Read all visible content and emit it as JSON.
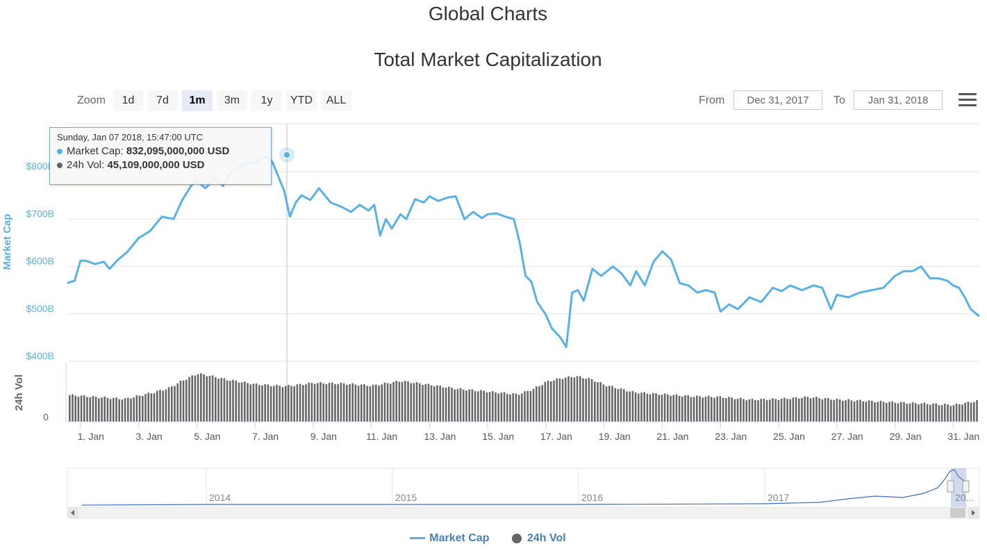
{
  "header": {
    "title": "Global Charts",
    "chart_title": "Total Market Capitalization"
  },
  "zoom": {
    "label": "Zoom",
    "buttons": [
      "1d",
      "7d",
      "1m",
      "3m",
      "1y",
      "YTD",
      "ALL"
    ],
    "active": "1m"
  },
  "range": {
    "from_label": "From",
    "from_value": "Dec 31, 2017",
    "to_label": "To",
    "to_value": "Jan 31, 2018"
  },
  "tooltip": {
    "date": "Sunday, Jan 07 2018, 15:47:00 UTC",
    "market_cap_label": "Market Cap:",
    "market_cap_value": "832,095,000,000 USD",
    "vol_label": "24h Vol:",
    "vol_value": "45,109,000,000 USD"
  },
  "legend": {
    "market_cap": "Market Cap",
    "vol": "24h Vol"
  },
  "colors": {
    "market_cap": "#58b0e3",
    "vol": "#666666",
    "navigator": "#3b6cc0"
  },
  "chart_data": {
    "type": "line",
    "title": "Total Market Capitalization",
    "ylabel": "Market Cap",
    "ylabel2": "24h Vol",
    "ylim": [
      400,
      860
    ],
    "y_unit": "B USD",
    "yticks": [
      "$400B",
      "$500B",
      "$600B",
      "$700B",
      "$800B"
    ],
    "ytick_values": [
      400,
      500,
      600,
      700,
      800
    ],
    "vol_ticks": [
      "0"
    ],
    "xticks": [
      "1. Jan",
      "3. Jan",
      "5. Jan",
      "7. Jan",
      "9. Jan",
      "11. Jan",
      "13. Jan",
      "15. Jan",
      "17. Jan",
      "19. Jan",
      "21. Jan",
      "23. Jan",
      "25. Jan",
      "27. Jan",
      "29. Jan",
      "31. Jan"
    ],
    "xtick_days": [
      1,
      3,
      5,
      7,
      9,
      11,
      13,
      15,
      17,
      19,
      21,
      23,
      25,
      27,
      29,
      31
    ],
    "xlim": [
      0.55,
      31.9
    ],
    "navigator_labels": [
      "2014",
      "2015",
      "2016",
      "2017",
      "20..."
    ],
    "series": [
      {
        "name": "Market Cap",
        "x": [
          0.55,
          0.8,
          1.0,
          1.2,
          1.5,
          1.8,
          2.0,
          2.3,
          2.6,
          3.0,
          3.4,
          3.8,
          4.2,
          4.5,
          4.8,
          5.0,
          5.3,
          5.6,
          5.9,
          6.2,
          6.6,
          7.0,
          7.4,
          7.6,
          7.8,
          8.0,
          8.2,
          8.4,
          8.6,
          8.9,
          9.2,
          9.6,
          10.0,
          10.3,
          10.6,
          10.9,
          11.1,
          11.3,
          11.5,
          11.7,
          12.0,
          12.2,
          12.5,
          12.8,
          13.0,
          13.3,
          13.6,
          13.9,
          14.2,
          14.5,
          14.8,
          15.0,
          15.3,
          15.6,
          15.9,
          16.1,
          16.3,
          16.5,
          16.7,
          17.0,
          17.2,
          17.5,
          17.7,
          17.9,
          18.1,
          18.3,
          18.6,
          18.9,
          19.3,
          19.6,
          19.9,
          20.1,
          20.4,
          20.7,
          21.0,
          21.3,
          21.6,
          21.9,
          22.2,
          22.5,
          22.8,
          23.0,
          23.3,
          23.6,
          24.0,
          24.4,
          24.8,
          25.1,
          25.4,
          25.8,
          26.2,
          26.5,
          26.8,
          27.0,
          27.4,
          27.8,
          28.2,
          28.6,
          29.0,
          29.3,
          29.6,
          29.9,
          30.2,
          30.5,
          30.8,
          31.0,
          31.2,
          31.4,
          31.6,
          31.8,
          31.9
        ],
        "values": [
          565,
          570,
          612,
          612,
          605,
          610,
          595,
          615,
          630,
          660,
          675,
          705,
          700,
          740,
          770,
          780,
          765,
          785,
          770,
          800,
          815,
          820,
          832,
          820,
          790,
          760,
          705,
          735,
          750,
          740,
          765,
          735,
          725,
          715,
          730,
          718,
          730,
          665,
          700,
          680,
          710,
          700,
          742,
          735,
          748,
          738,
          745,
          748,
          700,
          715,
          702,
          710,
          712,
          705,
          700,
          650,
          580,
          568,
          525,
          498,
          470,
          450,
          430,
          545,
          550,
          528,
          595,
          580,
          600,
          585,
          560,
          590,
          560,
          610,
          632,
          615,
          565,
          560,
          545,
          550,
          545,
          505,
          520,
          510,
          535,
          525,
          555,
          548,
          560,
          550,
          560,
          555,
          510,
          540,
          535,
          545,
          550,
          555,
          580,
          590,
          590,
          600,
          575,
          575,
          570,
          560,
          555,
          535,
          510,
          500,
          495
        ]
      },
      {
        "name": "24h Vol",
        "x": [
          0.55,
          1.5,
          2.5,
          3.5,
          4.0,
          4.5,
          5.0,
          5.5,
          6.0,
          7.0,
          8.0,
          9.0,
          10.0,
          11.0,
          12.0,
          13.0,
          14.0,
          15.0,
          16.0,
          16.5,
          17.0,
          17.5,
          18.0,
          18.5,
          19.0,
          20.0,
          21.0,
          22.0,
          23.0,
          24.0,
          25.0,
          26.0,
          27.0,
          28.0,
          29.0,
          30.0,
          31.0,
          31.9
        ],
        "values": [
          40,
          37,
          34,
          44,
          50,
          62,
          72,
          68,
          63,
          56,
          53,
          58,
          57,
          54,
          61,
          55,
          49,
          45,
          41,
          48,
          60,
          65,
          68,
          64,
          55,
          44,
          41,
          38,
          37,
          33,
          34,
          37,
          33,
          31,
          29,
          27,
          25,
          32
        ]
      }
    ]
  }
}
